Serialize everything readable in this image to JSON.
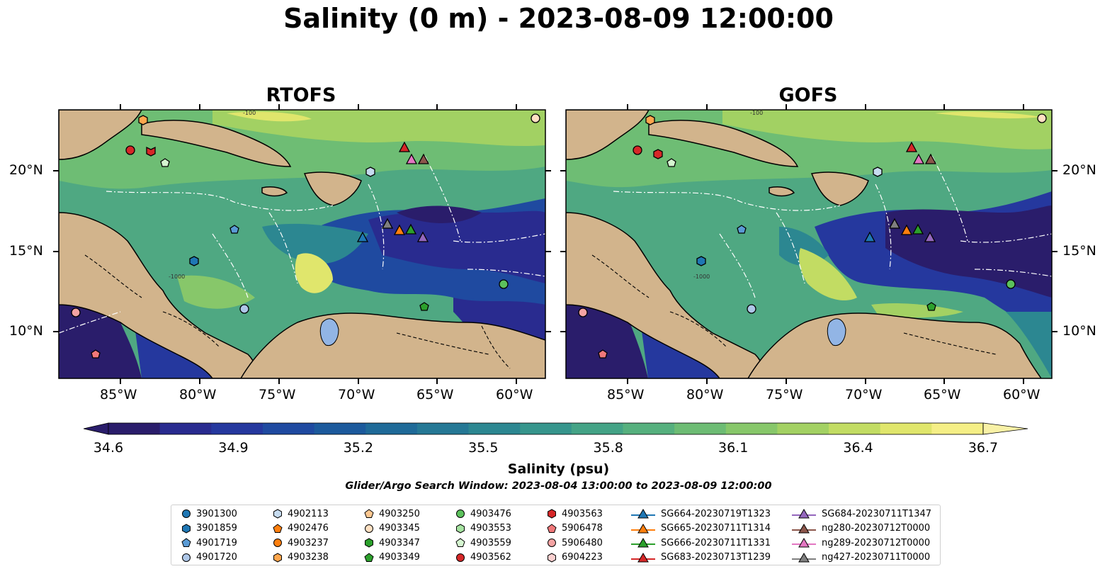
{
  "title": "Salinity (0 m) - 2023-08-09 12:00:00",
  "panels": [
    {
      "title": "RTOFS",
      "lat_ticks": [
        "20°N",
        "15°N",
        "10°N"
      ],
      "lon_ticks": [
        "85°W",
        "80°W",
        "75°W",
        "70°W",
        "65°W",
        "60°W"
      ],
      "lat_side": "left"
    },
    {
      "title": "GOFS",
      "lat_ticks": [
        "20°N",
        "15°N",
        "10°N"
      ],
      "lon_ticks": [
        "85°W",
        "80°W",
        "75°W",
        "70°W",
        "65°W",
        "60°W"
      ],
      "lat_side": "right"
    }
  ],
  "map_contour_labels": [
    "-100",
    "-1000"
  ],
  "colorbar": {
    "label": "Salinity (psu)",
    "ticks": [
      "34.6",
      "34.9",
      "35.2",
      "35.5",
      "35.8",
      "36.1",
      "36.4",
      "36.7"
    ],
    "min": 34.6,
    "max": 36.7,
    "extend": "both",
    "colors": [
      "#2a1d6b",
      "#292b8f",
      "#25389e",
      "#1f4aa0",
      "#1c5a9c",
      "#1f6a98",
      "#257895",
      "#2c8791",
      "#36958c",
      "#44a386",
      "#56b07e",
      "#6dbc74",
      "#87c76a",
      "#a3d163",
      "#c2dc63",
      "#e0e66c",
      "#f5ef86"
    ]
  },
  "search_window": "Glider/Argo Search Window: 2023-08-04 13:00:00 to 2023-08-09 12:00:00",
  "legend": {
    "columns": [
      [
        {
          "label": "3901300",
          "marker": "circle",
          "color": "#1f77b4"
        },
        {
          "label": "3901859",
          "marker": "hexagon",
          "color": "#1f77b4"
        },
        {
          "label": "4901719",
          "marker": "pentagon",
          "color": "#5a9bd5"
        },
        {
          "label": "4901720",
          "marker": "circle",
          "color": "#aec7e8"
        }
      ],
      [
        {
          "label": "4902113",
          "marker": "hexagon",
          "color": "#c6dbef"
        },
        {
          "label": "4902476",
          "marker": "pentagon",
          "color": "#ff7f0e"
        },
        {
          "label": "4903237",
          "marker": "circle",
          "color": "#ff7f0e"
        },
        {
          "label": "4903238",
          "marker": "hexagon",
          "color": "#ffa64d"
        }
      ],
      [
        {
          "label": "4903250",
          "marker": "pentagon",
          "color": "#ffc891"
        },
        {
          "label": "4903345",
          "marker": "circle",
          "color": "#ffe0c2"
        },
        {
          "label": "4903347",
          "marker": "hexagon",
          "color": "#2ca02c"
        },
        {
          "label": "4903349",
          "marker": "pentagon",
          "color": "#2ca02c"
        }
      ],
      [
        {
          "label": "4903476",
          "marker": "circle",
          "color": "#5cc15c"
        },
        {
          "label": "4903553",
          "marker": "hexagon",
          "color": "#a6e3a1"
        },
        {
          "label": "4903559",
          "marker": "pentagon",
          "color": "#d5f5d0"
        },
        {
          "label": "4903562",
          "marker": "circle",
          "color": "#d62728"
        }
      ],
      [
        {
          "label": "4903563",
          "marker": "hexagon",
          "color": "#d62728"
        },
        {
          "label": "5906478",
          "marker": "pentagon",
          "color": "#f0787a"
        },
        {
          "label": "5906480",
          "marker": "circle",
          "color": "#f4a3a3"
        },
        {
          "label": "6904223",
          "marker": "hexagon",
          "color": "#fbd0d0"
        }
      ],
      [
        {
          "label": "SG664-20230719T1323",
          "marker": "triangle",
          "color": "#1f77b4"
        },
        {
          "label": "SG665-20230711T1314",
          "marker": "triangle",
          "color": "#ff7f0e"
        },
        {
          "label": "SG666-20230711T1331",
          "marker": "triangle",
          "color": "#2ca02c"
        },
        {
          "label": "SG683-20230713T1239",
          "marker": "triangle",
          "color": "#d62728"
        }
      ],
      [
        {
          "label": "SG684-20230711T1347",
          "marker": "triangle",
          "color": "#9467bd"
        },
        {
          "label": "ng280-20230712T0000",
          "marker": "triangle",
          "color": "#8c564b"
        },
        {
          "label": "ng289-20230712T0000",
          "marker": "triangle",
          "color": "#e377c2"
        },
        {
          "label": "ng427-20230711T0000",
          "marker": "triangle",
          "color": "#7f7f7f"
        }
      ]
    ]
  }
}
